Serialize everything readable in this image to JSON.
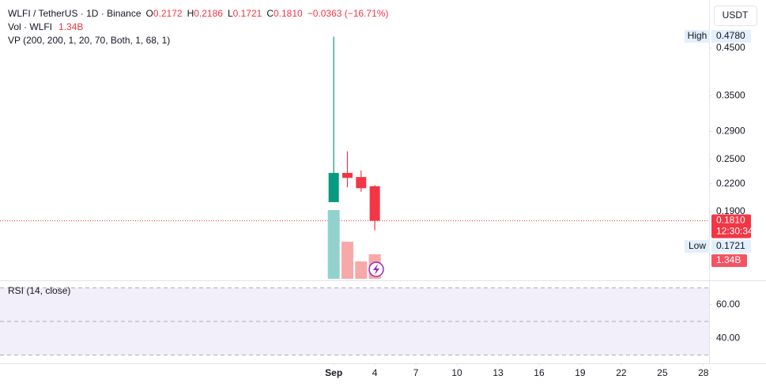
{
  "header": {
    "pair": "WLFI / TetherUS · 1D · Binance",
    "o": "O",
    "h": "H",
    "l": "L",
    "c": "C",
    "change": "−0.0363 (−16.71%)",
    "vol_title": "Vol · WLFI",
    "vp_title": "VP (200, 200, 1, 20, 70, Both, 1, 68, 1)",
    "currency": "USDT",
    "high_tag": "High",
    "low_tag": "Low",
    "countdown": "12:30:34"
  },
  "chart_data": {
    "type": "candlestick",
    "x": [
      1,
      2,
      3,
      4
    ],
    "open": [
      0.1997,
      0.233,
      0.228,
      0.2172
    ],
    "high": [
      0.478,
      0.261,
      0.236,
      0.2186
    ],
    "low": [
      0.1997,
      0.216,
      0.211,
      0.1721
    ],
    "close": [
      0.233,
      0.227,
      0.215,
      0.181
    ],
    "high_labels": [
      "0.4780",
      null,
      null,
      null
    ],
    "close_labels": [
      null,
      null,
      null,
      "0.1810"
    ],
    "up_color": "#089981",
    "down_color": "#f23645",
    "volume": [
      3760000000,
      2030000000,
      950000000,
      1340000000
    ],
    "volume_labels": [
      null,
      null,
      null,
      "1.34B"
    ],
    "volume_up_color": "#92d2cc",
    "volume_down_color": "#f7a9a7",
    "volume_ylim": [
      0,
      15040000000
    ],
    "xlim": [
      -23.2,
      28.3
    ],
    "xticks": [
      {
        "value": 1,
        "label": "Sep"
      },
      4,
      7,
      10,
      13,
      16,
      19,
      22,
      25,
      28
    ],
    "ylim": [
      0.1333,
      0.568
    ],
    "log_scale": true,
    "yticks": [
      {
        "value": 0.45,
        "label": "0.4500"
      },
      {
        "value": 0.35,
        "label": "0.3500"
      },
      {
        "value": 0.29,
        "label": "0.2900"
      },
      {
        "value": 0.25,
        "label": "0.2500"
      },
      {
        "value": 0.22,
        "label": "0.2200"
      },
      {
        "value": 0.19,
        "label": "0.1900"
      }
    ],
    "rsi": {
      "title": "RSI (14, close)",
      "ylim": [
        26,
        74
      ],
      "yticks": [
        {
          "value": 60,
          "label": "60.00"
        },
        {
          "value": 40,
          "label": "40.00"
        }
      ],
      "levels": [
        70,
        50,
        30
      ],
      "band_color": "#f2eefa"
    }
  }
}
